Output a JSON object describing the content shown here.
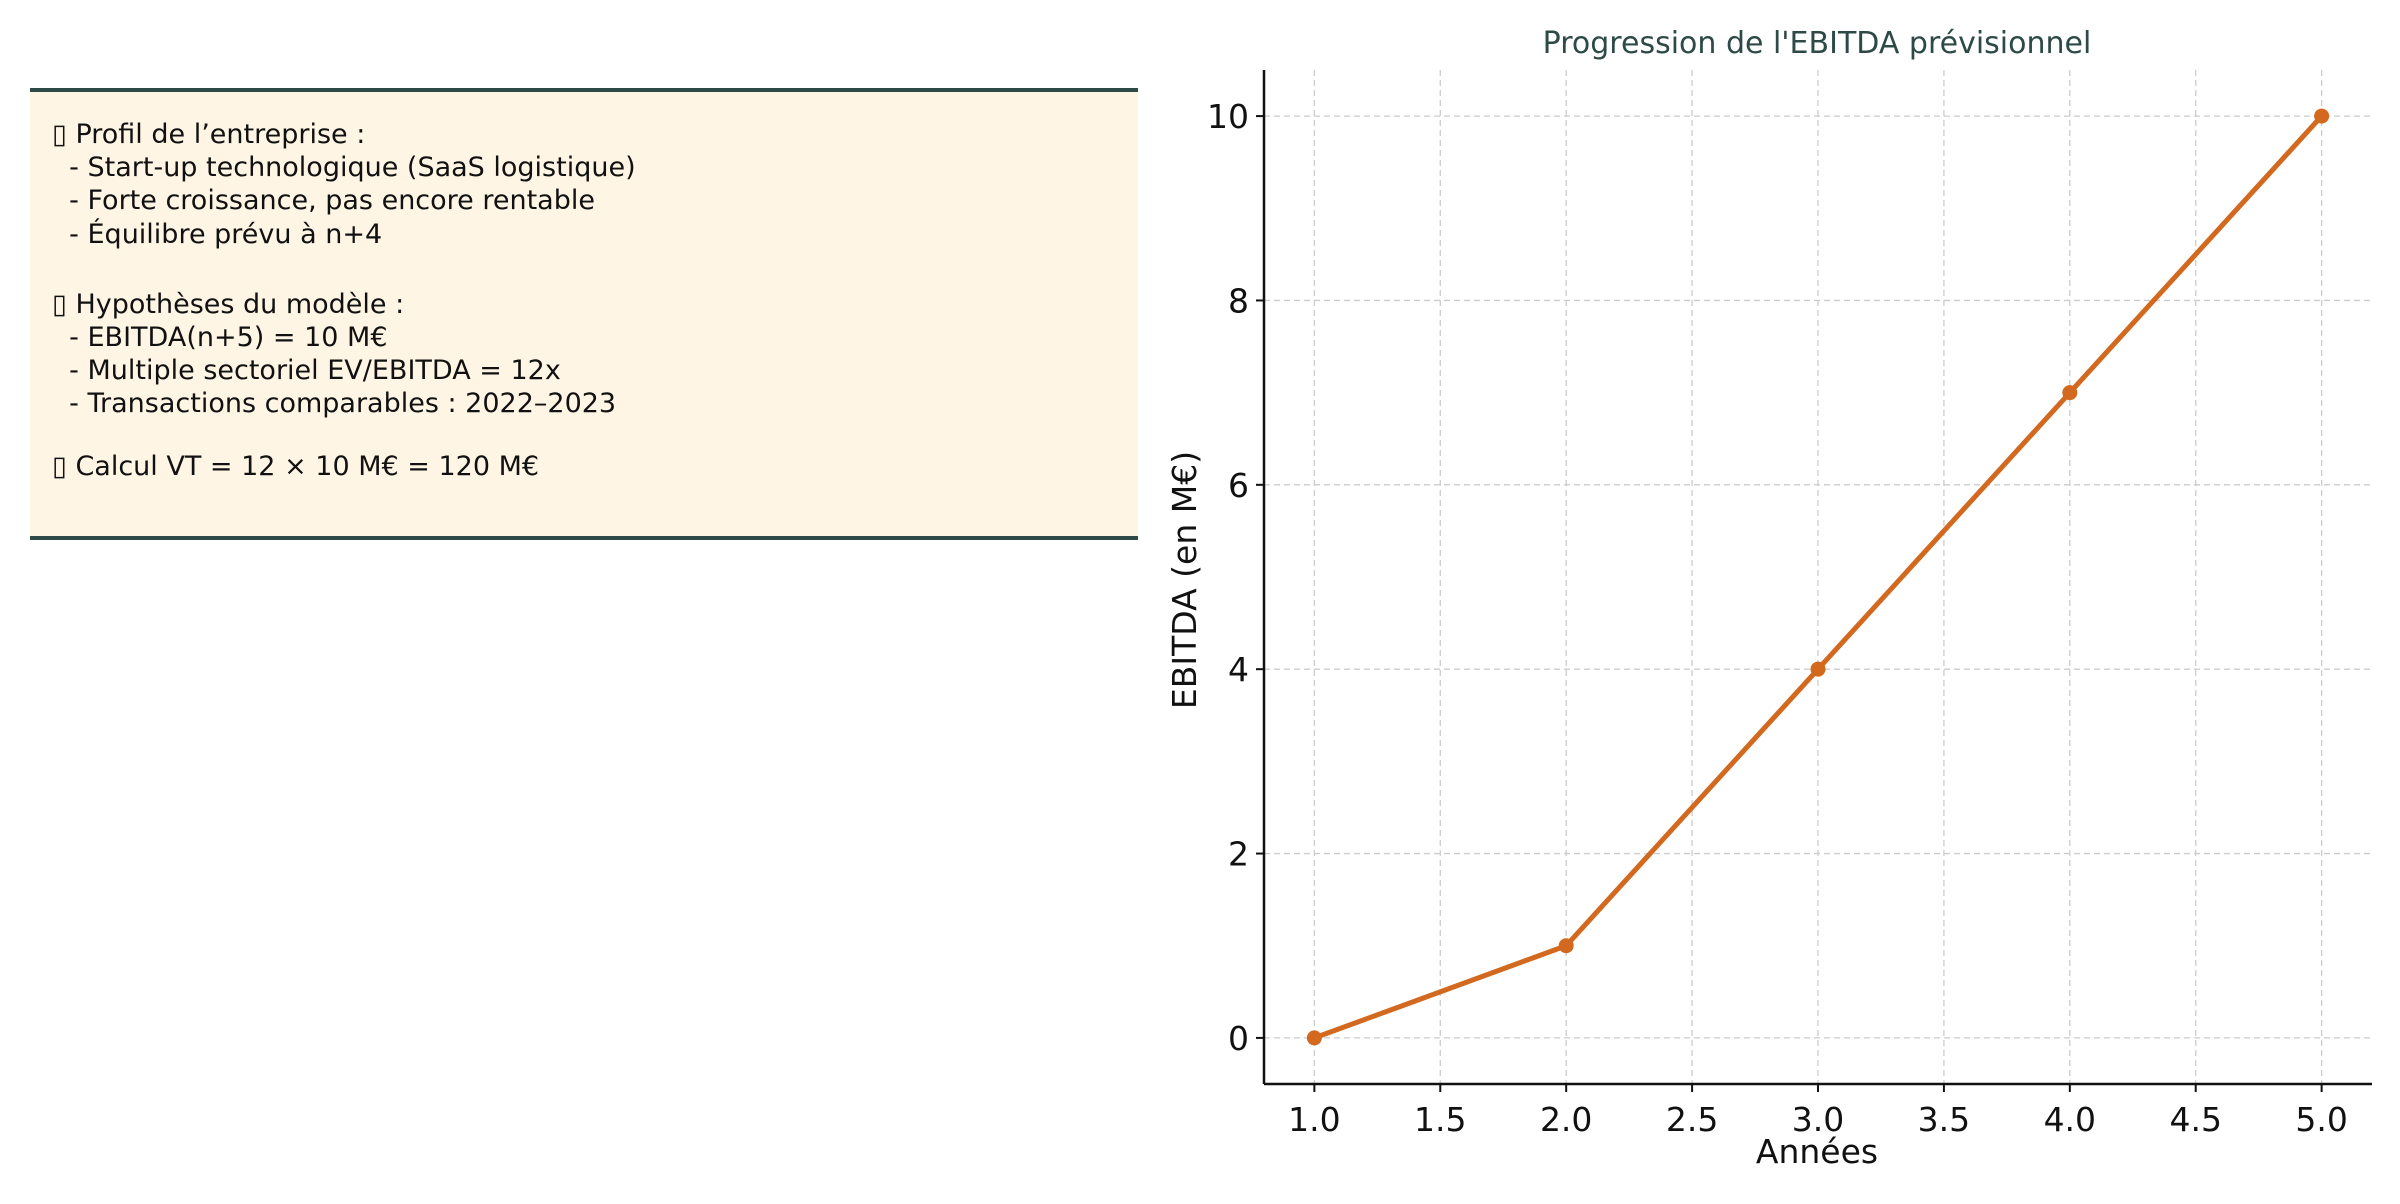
{
  "info_panel": {
    "lines": [
      "▯ Profil de l’entreprise :",
      "  - Start-up technologique (SaaS logistique)",
      "  - Forte croissance, pas encore rentable",
      "  - Équilibre prévu à n+4",
      "",
      "▯ Hypothèses du modèle :",
      "  - EBITDA(n+5) = 10 M€",
      "  - Multiple sectoriel EV/EBITDA = 12x",
      "  - Transactions comparables : 2022–2023",
      "",
      "▯ Calcul VT = 12 × 10 M€ = 120 M€"
    ]
  },
  "chart_data": {
    "type": "line",
    "title": "Progression de l'EBITDA prévisionnel",
    "xlabel": "Années",
    "ylabel": "EBITDA (en M€)",
    "x": [
      1,
      2,
      3,
      4,
      5
    ],
    "series": [
      {
        "name": "",
        "values": [
          0,
          1,
          4,
          7,
          10
        ]
      }
    ],
    "xlim": [
      0.8,
      5.2
    ],
    "ylim": [
      -0.5,
      10.5
    ],
    "xticks": [
      "1.0",
      "1.5",
      "2.0",
      "2.5",
      "3.0",
      "3.5",
      "4.0",
      "4.5",
      "5.0"
    ],
    "yticks": [
      "0",
      "2",
      "4",
      "6",
      "8",
      "10"
    ],
    "grid": true,
    "line_color": "#d2691e",
    "title_color": "#2d4a46"
  }
}
